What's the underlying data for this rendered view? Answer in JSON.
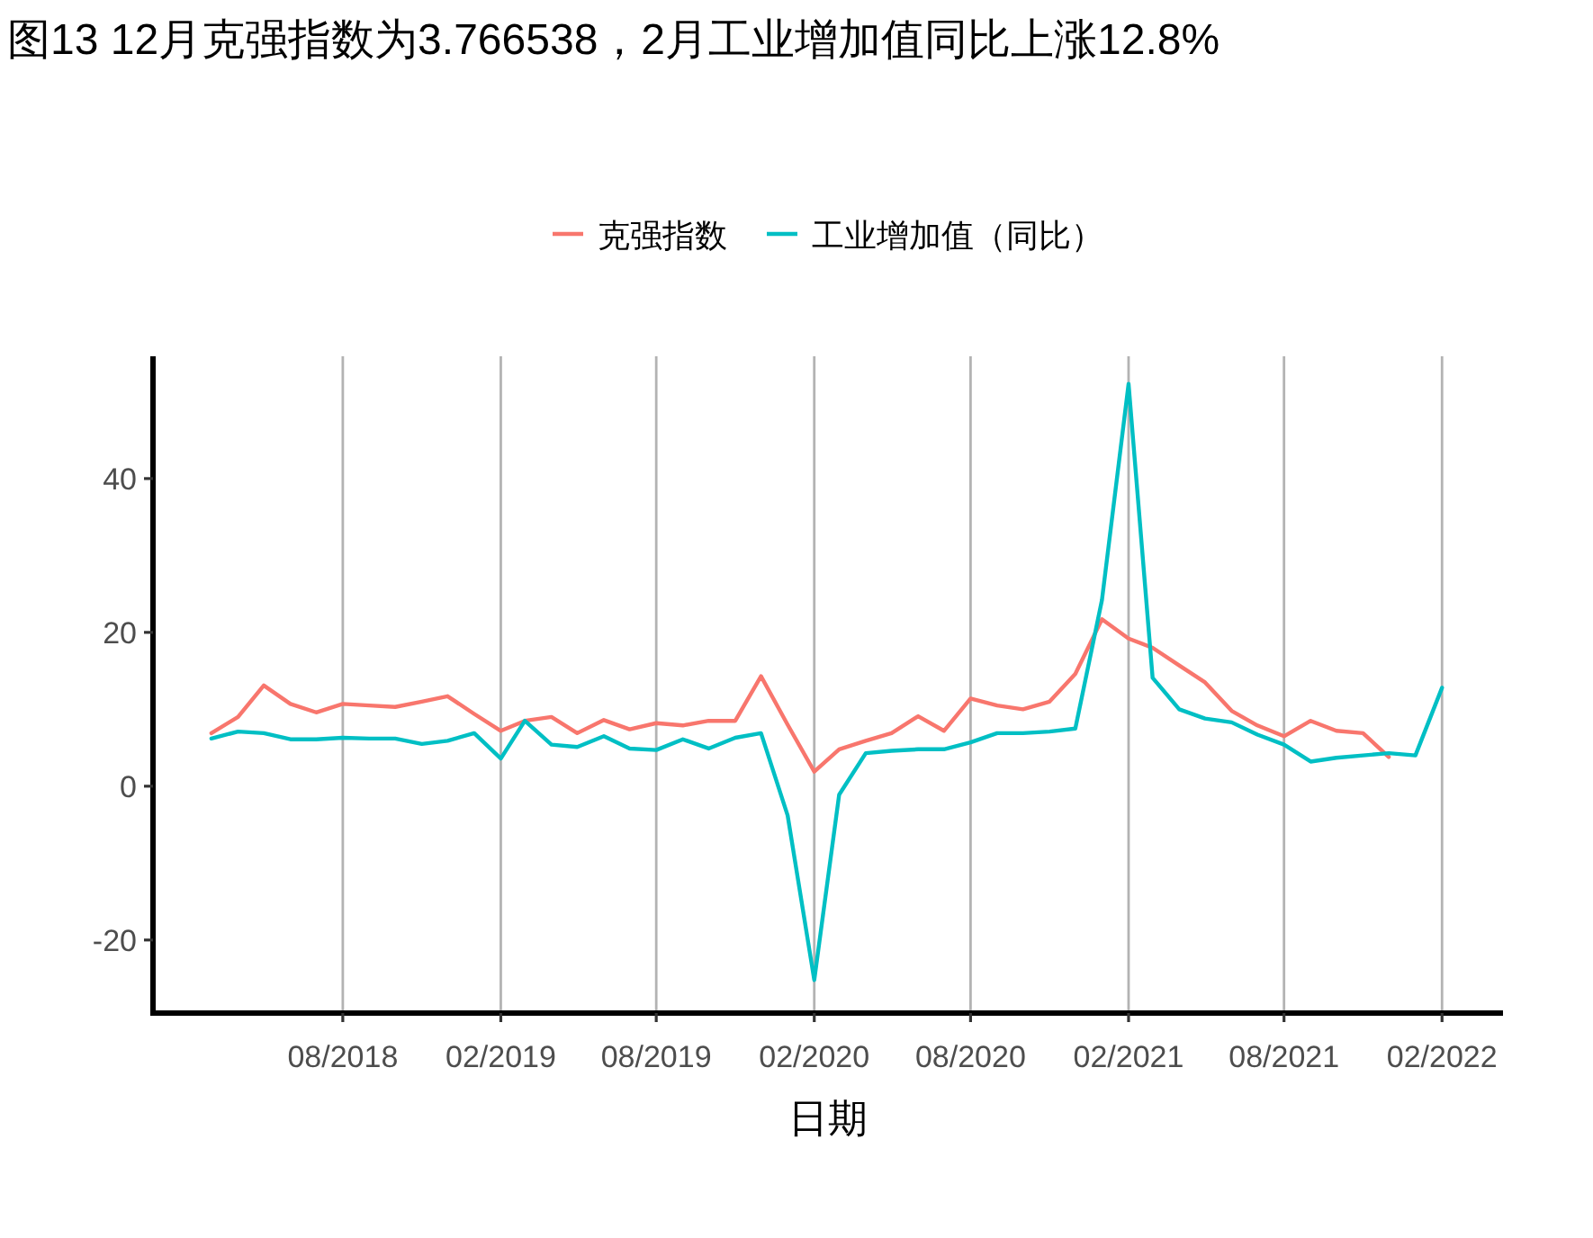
{
  "chart_data": {
    "type": "line",
    "title": "图13 12月克强指数为3.766538，2月工业增加值同比上涨12.8%",
    "xlabel": "日期",
    "x": [
      "2018-03",
      "2018-04",
      "2018-05",
      "2018-06",
      "2018-07",
      "2018-08",
      "2018-09",
      "2018-10",
      "2018-11",
      "2018-12",
      "2019-01",
      "2019-02",
      "2019-03",
      "2019-04",
      "2019-05",
      "2019-06",
      "2019-07",
      "2019-08",
      "2019-09",
      "2019-10",
      "2019-11",
      "2019-12",
      "2020-01",
      "2020-02",
      "2020-03",
      "2020-04",
      "2020-05",
      "2020-06",
      "2020-07",
      "2020-08",
      "2020-09",
      "2020-10",
      "2020-11",
      "2020-12",
      "2021-01",
      "2021-02",
      "2021-03",
      "2021-04",
      "2021-05",
      "2021-06",
      "2021-07",
      "2021-08",
      "2021-09",
      "2021-10",
      "2021-11",
      "2021-12",
      "2022-01",
      "2022-02"
    ],
    "series": [
      {
        "name": "克强指数",
        "color": "#f8766d",
        "values": [
          6.9,
          9.0,
          13.1,
          10.7,
          9.6,
          10.7,
          10.5,
          10.3,
          11.0,
          11.7,
          9.4,
          7.2,
          8.5,
          9.0,
          6.9,
          8.6,
          7.4,
          8.2,
          7.9,
          8.5,
          8.5,
          14.3,
          8.0,
          1.9,
          4.8,
          5.9,
          6.9,
          9.1,
          7.2,
          11.4,
          10.5,
          10.0,
          11.0,
          14.6,
          21.7,
          19.2,
          18.0,
          15.7,
          13.5,
          9.8,
          7.9,
          6.5,
          8.5,
          7.2,
          6.9,
          3.8,
          null,
          null
        ]
      },
      {
        "name": "工业增加值（同比）",
        "color": "#00bfc4",
        "values": [
          6.2,
          7.1,
          6.9,
          6.1,
          6.1,
          6.3,
          6.2,
          6.2,
          5.5,
          5.9,
          6.9,
          3.6,
          8.5,
          5.4,
          5.1,
          6.5,
          4.9,
          4.7,
          6.1,
          4.9,
          6.3,
          6.9,
          -3.8,
          -25.2,
          -1.1,
          4.3,
          4.6,
          4.8,
          4.8,
          5.7,
          6.9,
          6.9,
          7.1,
          7.5,
          24.2,
          52.3,
          14.1,
          10.0,
          8.8,
          8.3,
          6.7,
          5.4,
          3.2,
          3.7,
          4.0,
          4.3,
          4.0,
          12.8
        ]
      }
    ],
    "xlim": [
      "2017-12-23",
      "2022-04-13"
    ],
    "xticks": [
      {
        "value": "2018-08",
        "label": "08/2018"
      },
      {
        "value": "2019-02",
        "label": "02/2019"
      },
      {
        "value": "2019-08",
        "label": "08/2019"
      },
      {
        "value": "2020-02",
        "label": "02/2020"
      },
      {
        "value": "2020-08",
        "label": "08/2020"
      },
      {
        "value": "2021-02",
        "label": "02/2021"
      },
      {
        "value": "2021-08",
        "label": "08/2021"
      },
      {
        "value": "2022-02",
        "label": "02/2022"
      }
    ],
    "ylim": [
      -29.5,
      55.9
    ],
    "yticks": [
      -20,
      0,
      20,
      40
    ],
    "grid": "x",
    "legend": "top",
    "line_style": "solid",
    "marker": "none"
  }
}
